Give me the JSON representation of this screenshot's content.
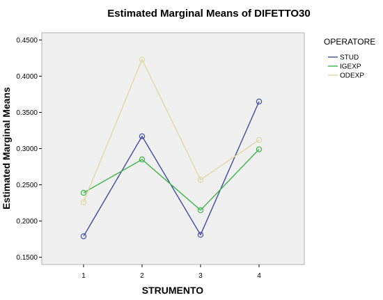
{
  "chart_data": {
    "type": "line",
    "title": "Estimated Marginal Means of DIFETTO30",
    "xlabel": "STRUMENTO",
    "ylabel": "Estimated Marginal Means",
    "categories": [
      "1",
      "2",
      "3",
      "4"
    ],
    "ylim": [
      0.14,
      0.46
    ],
    "yticks": [
      "0.1500",
      "0.2000",
      "0.2500",
      "0.3000",
      "0.3500",
      "0.4000",
      "0.4500"
    ],
    "grid": false,
    "plot_background": "#f0f0f0",
    "legend": {
      "title": "OPERATORE",
      "position": "right"
    },
    "series": [
      {
        "name": "STUD",
        "color": "#3d4d9e",
        "values": [
          0.179,
          0.317,
          0.181,
          0.365
        ]
      },
      {
        "name": "IGEXP",
        "color": "#3cb44a",
        "values": [
          0.239,
          0.285,
          0.215,
          0.299
        ]
      },
      {
        "name": "ODEXP",
        "color": "#e1d7a5",
        "values": [
          0.226,
          0.423,
          0.257,
          0.312
        ]
      }
    ]
  }
}
